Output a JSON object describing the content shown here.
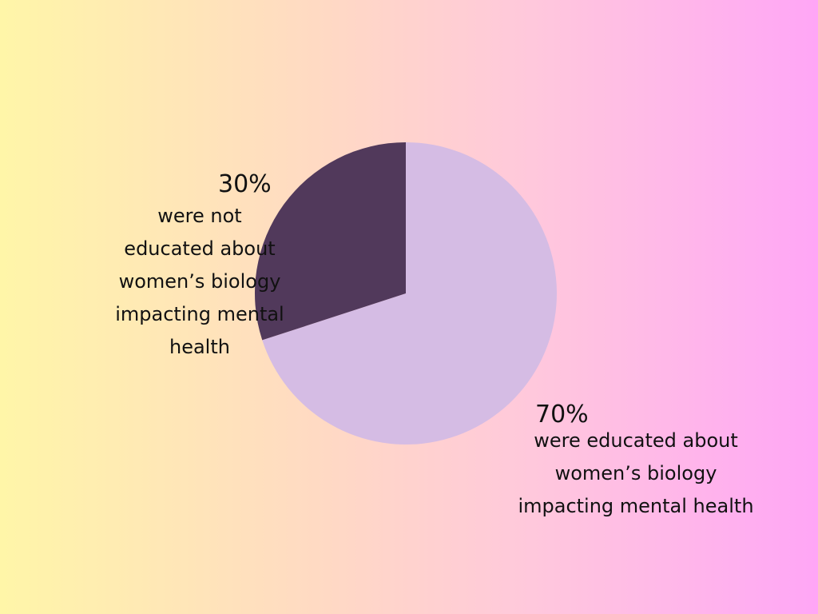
{
  "chart_data": {
    "type": "pie",
    "slices": [
      {
        "value": 30,
        "label": "30%",
        "description": "were not educated about women’s biology impacting mental health",
        "color": "#51395b"
      },
      {
        "value": 70,
        "label": "70%",
        "description": "were educated about women’s biology impacting mental health",
        "color": "#d5bce4"
      }
    ]
  }
}
